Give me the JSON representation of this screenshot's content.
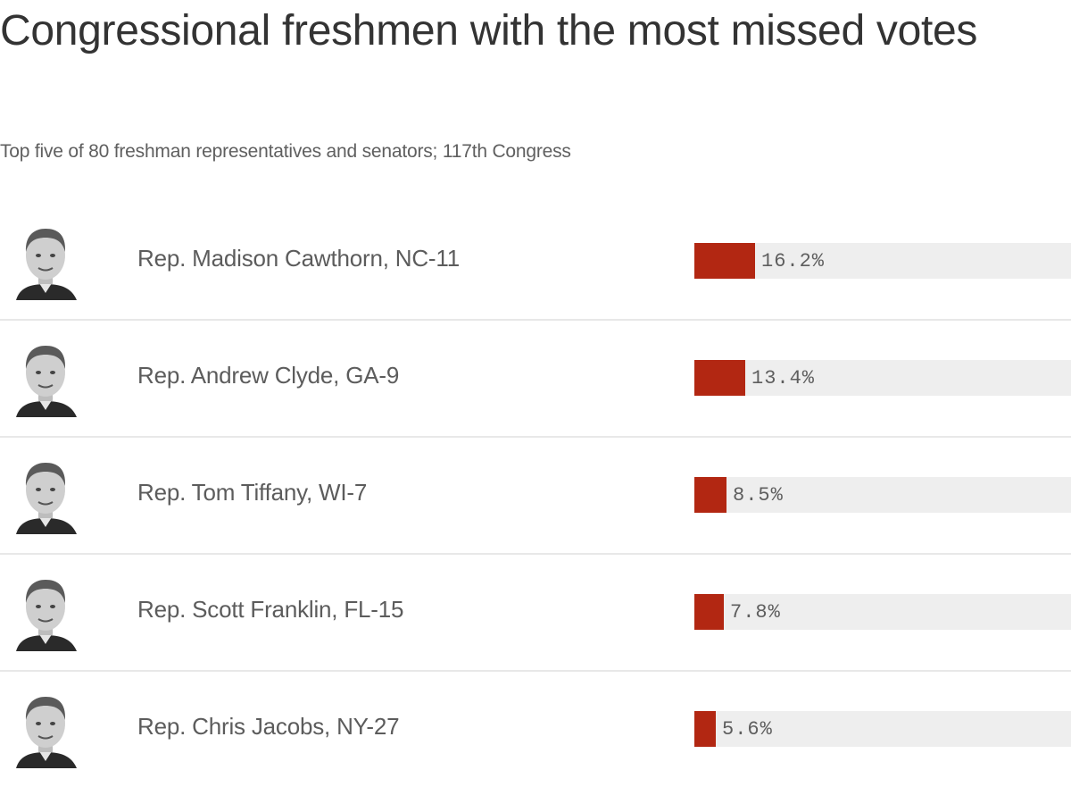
{
  "header": {
    "title": "Congressional freshmen with the most missed votes",
    "subtitle": "Top five of 80 freshman representatives and senators; 117th Congress"
  },
  "colors": {
    "bar": "#b22712",
    "track": "#eeeeee",
    "divider": "#e8e8e8"
  },
  "chart_data": {
    "type": "bar",
    "orientation": "horizontal",
    "title": "Congressional freshmen with the most missed votes",
    "subtitle": "Top five of 80 freshman representatives and senators; 117th Congress",
    "xlabel": "",
    "ylabel": "",
    "xlim": [
      0,
      100
    ],
    "unit": "%",
    "grid": false,
    "legend": null,
    "categories": [
      "Rep. Madison Cawthorn, NC-11",
      "Rep. Andrew Clyde, GA-9",
      "Rep. Tom Tiffany, WI-7",
      "Rep. Scott Franklin, FL-15",
      "Rep. Chris Jacobs, NY-27"
    ],
    "values": [
      16.2,
      13.4,
      8.5,
      7.8,
      5.6
    ],
    "labels": [
      "16.2%",
      "13.4%",
      "8.5%",
      "7.8%",
      "5.6%"
    ]
  },
  "rows": [
    {
      "name": "Rep. Madison Cawthorn, NC-11",
      "value": 16.2,
      "label": "16.2%",
      "photo": "headshot-photo"
    },
    {
      "name": "Rep. Andrew Clyde, GA-9",
      "value": 13.4,
      "label": "13.4%",
      "photo": "headshot-photo"
    },
    {
      "name": "Rep. Tom Tiffany, WI-7",
      "value": 8.5,
      "label": "8.5%",
      "photo": "headshot-photo"
    },
    {
      "name": "Rep. Scott Franklin, FL-15",
      "value": 7.8,
      "label": "7.8%",
      "photo": "headshot-photo"
    },
    {
      "name": "Rep. Chris Jacobs, NY-27",
      "value": 5.6,
      "label": "5.6%",
      "photo": "headshot-photo"
    }
  ]
}
